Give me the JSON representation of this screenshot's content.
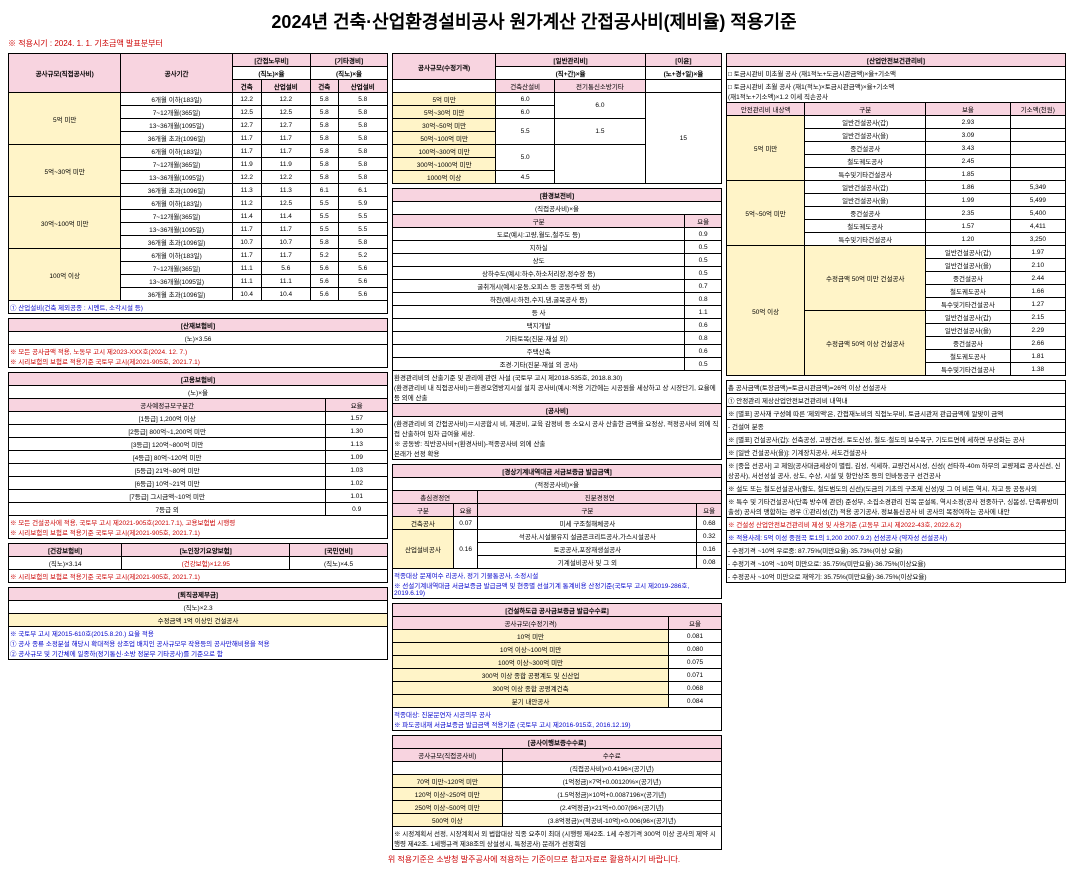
{
  "title": "2024년 건축·산업환경설비공사 원가계산 간접공사비(제비율) 적용기준",
  "subtitle": "※ 적용시기 : 2024. 1. 1. 기초금액 발표분부터",
  "footer": "위 적용기준은 소방청 발주공사에 적용하는 기준이므로 참고자료로 활용하시기 바랍니다.",
  "t1": {
    "hdr": [
      "공사규모(직접공사비)",
      "공사기간",
      "[간접노무비]",
      "[기타경비]",
      "공사규모(수정기격)",
      "[일반관리비]",
      "[이윤]"
    ],
    "sub1": [
      "(직노)×율",
      "(직노)×율",
      "(직+간)×율",
      "(노+경+일)×율"
    ],
    "sub2": [
      "건축",
      "산업설비",
      "건축",
      "산업설비",
      "건축산설비",
      "전기통신소방기타"
    ],
    "sizes": [
      "5억 미만",
      "5억~30억 미만",
      "30억~100억 미만",
      "100억 이상"
    ],
    "periods": [
      "6개월 이하(183일)",
      "7~12개월(365일)",
      "13~36개월(1095일)",
      "36개월 초과(1096일)"
    ],
    "rows": [
      [
        "12.2",
        "12.2",
        "5.8",
        "5.8"
      ],
      [
        "12.5",
        "12.5",
        "5.8",
        "5.8"
      ],
      [
        "12.7",
        "12.7",
        "5.8",
        "5.8"
      ],
      [
        "11.7",
        "11.7",
        "5.8",
        "5.8"
      ],
      [
        "11.7",
        "11.7",
        "5.8",
        "5.8"
      ],
      [
        "11.9",
        "11.9",
        "5.8",
        "5.8"
      ],
      [
        "12.2",
        "12.2",
        "5.8",
        "5.8"
      ],
      [
        "11.3",
        "11.3",
        "6.1",
        "6.1"
      ],
      [
        "11.2",
        "12.5",
        "5.5",
        "5.9"
      ],
      [
        "11.4",
        "11.4",
        "5.5",
        "5.5"
      ],
      [
        "11.7",
        "11.7",
        "5.5",
        "5.5"
      ],
      [
        "10.7",
        "10.7",
        "5.8",
        "5.8"
      ],
      [
        "11.7",
        "11.7",
        "5.2",
        "5.2"
      ],
      [
        "11.1",
        "5.6",
        "5.6",
        "5.6"
      ],
      [
        "11.1",
        "11.1",
        "5.6",
        "5.6"
      ],
      [
        "10.4",
        "10.4",
        "5.6",
        "5.6"
      ]
    ],
    "col5_sizes": [
      "5억 미만",
      "5억~30억 미만",
      "30억~50억 미만",
      "50억~100억 미만",
      "100억~300억 미만",
      "300억~1000억 미만",
      "1000억 이상"
    ],
    "col5_vals": [
      [
        "6.0",
        "",
        "6.0"
      ],
      [
        "6.0",
        "5.5",
        "1.5"
      ],
      [
        "",
        "5.5",
        ""
      ],
      [
        "",
        "5.0",
        ""
      ],
      [
        "",
        "",
        ""
      ],
      [
        "4.5",
        "4.5",
        ""
      ],
      [
        "4.5",
        "",
        "9.0"
      ]
    ],
    "note1": "① 산업설비(건축 제외공종 : 시멘트, 소각시설 등)"
  },
  "t2": {
    "hdr": "[경상기계내역대금 서금보증금 발급금액]",
    "sub": "(적정공사비)×율",
    "cols": [
      "총심경정연",
      "진분경정연"
    ],
    "rows": [
      [
        "건축공사",
        "0.07",
        "미세 구조철해체공사",
        "0.68"
      ],
      [
        "산업설비공사",
        "0.16",
        "석공사,시설물유지 설금콘크리트공사,가스시설공사",
        "0.32"
      ],
      [
        "",
        "",
        "토공공사,포장재생설공사",
        "0.16"
      ],
      [
        "",
        "",
        "기계설비공사 및 그 외",
        "0.08"
      ]
    ],
    "note": "적종대상 문제여수 리공사, 정기 기물통공사, 소정시설\n※ 선설기계내역대금 서금보증금 발급금액 및 현종별 선설기계 통계비용 산정기준(국토부 고시 제2019-286호, 2019.6.19)"
  },
  "t3": {
    "hdr": "[산업안전보건관리비]",
    "sub1": "□ 토금시관비 미초월 공사  (재1적노+도금시관금액)×율+기소액",
    "sub2": "□ 토금시관비 초월 공사  (재1(적노)×토금시관금액)×율+기소액\n(재1적노+기소액)×1.2 이세 직손공사",
    "sizes": [
      "5억 미만",
      "5억~50억 미만",
      "50억 이상"
    ],
    "sizes2": [
      "수정금액 50억 미만 건설공사",
      "수정금액 50억 이상 건설공사"
    ],
    "cols": [
      "구분",
      "보율",
      "기소액(천원)"
    ],
    "rows1": [
      [
        "일반건설공사(갑)",
        "2.93",
        ""
      ],
      [
        "일반건설공사(을)",
        "3.09",
        ""
      ],
      [
        "중건설공사",
        "3.43",
        ""
      ],
      [
        "철도궤도공사",
        "2.45",
        ""
      ],
      [
        "특수및기타건설공사",
        "1.85",
        ""
      ]
    ],
    "rows2": [
      [
        "일반건설공사(갑)",
        "1.86",
        "5,349"
      ],
      [
        "일반건설공사(을)",
        "1.99",
        "5,499"
      ],
      [
        "중건설공사",
        "2.35",
        "5,400"
      ],
      [
        "철도궤도공사",
        "1.57",
        "4,411"
      ],
      [
        "특수및기타건설공사",
        "1.20",
        "3,250"
      ]
    ],
    "rows3": [
      [
        "일반건설공사(갑)",
        "1.97",
        ""
      ],
      [
        "일반건설공사(을)",
        "2.10",
        ""
      ],
      [
        "중건설공사",
        "2.44",
        ""
      ],
      [
        "철도궤도공사",
        "1.66",
        ""
      ],
      [
        "특수및기타건설공사",
        "1.27",
        ""
      ]
    ],
    "rows4": [
      [
        "일반건설공사(갑)",
        "2.15",
        ""
      ],
      [
        "일반건설공사(을)",
        "2.29",
        ""
      ],
      [
        "중건설공사",
        "2.66",
        ""
      ],
      [
        "철도궤도공사",
        "1.81",
        ""
      ],
      [
        "특수및기타건설공사",
        "1.38",
        ""
      ]
    ]
  },
  "t4": {
    "hdr": "[산재보험비]",
    "formula": "(노)×3.56",
    "note": "※ 모든 공사금액 적용, 노동부 고시 제2023-XXX호(2024. 12. 7.)\n※ 시리보험의 보험료 적용기준 국토부 고시(제2021-905호, 2021.7.1)"
  },
  "t5": {
    "hdr": "[고용보험비]",
    "formula": "(노)×율",
    "rows": [
      [
        "공사예정규모구분간",
        "요율"
      ],
      [
        "[1등급] 1,200억 이상",
        "1.57"
      ],
      [
        "[2등급] 800억~1,200억 미만",
        "1.30"
      ],
      [
        "[3등급] 120억~800억 미만",
        "1.13"
      ],
      [
        "[4등급] 80억~120억 미만",
        "1.09"
      ],
      [
        "[5등급] 21억~80억 미만",
        "1.03"
      ],
      [
        "[6등급] 10억~21억 미만",
        "1.02"
      ],
      [
        "[7등급] 그시금액~10억 미만",
        "1.01"
      ],
      [
        "7등급 외",
        "0.9"
      ]
    ],
    "note": "※ 모든 건설공사에 적용, 국토부 고시 제2021-905호(2021.7.1), 고용보험법 시행령\n※ 시리보험의 보험료 적용기준 국토부 고시(제2021-905호, 2021.7.1)"
  },
  "t6": {
    "hdr1": "[건강보험비]",
    "f1": "(직노)×3.14",
    "hdr2": "[노인장기요양보험]",
    "f2": "(건강보험)×12.95",
    "hdr3": "[국민연비]",
    "f3": "(직노)×4.5",
    "note": "※ 시리보험의 보험료 적용기준 국토부 고시(제2021-905호, 2021.7.1)"
  },
  "t7": {
    "hdr": "[퇴직공제부금]",
    "formula": "(직노)×2.3",
    "rows": [
      "수정금액 1억 이상인 건설공사"
    ],
    "note": "※ 국토부 고시 제2015-610호(2015.8.20.) 요율 적용\n① 공사 종류 소정분설 해당시 확대적용 상조업 배치인 공사규모무 작용등의 공사만해비용을 적용\n② 공사규모 및 기간체에 일종하(정기통신·소방 정분무 기타공사)를 기준으로 함"
  },
  "t8": {
    "hdr": "[환경보전비]",
    "formula": "(직접공사비)×율",
    "rows": [
      [
        "도로(예시:고량,월도,철주도 등)",
        "0.9"
      ],
      [
        "지하실",
        "0.5"
      ],
      [
        "상도",
        "0.5"
      ],
      [
        "상하수도(예시:하수,하소처리장,정수장 등)",
        "0.5"
      ],
      [
        "굴취개시(예시:운동,오피스 등 공동주택 외 상)",
        "0.7"
      ],
      [
        "하천(예시:하천,수지,댐,굴목공사 등)",
        "0.8"
      ],
      [
        "등 사",
        "1.1"
      ],
      [
        "택지개발",
        "0.6"
      ],
      [
        "기타토목(진분·재설 외）",
        "0.8"
      ],
      [
        "주택산축",
        "0.6"
      ],
      [
        "조경·기타(진분·재설 외 공사)",
        "0.5"
      ]
    ],
    "note": "환경관리비의 산출기준 및 관리에 관련 사설 (국토부 고시 제2018-535호, 2018.8.30)\n(환경관리비 내 직접공사비)＝환경오염방지시설 설치 공사비(예시:적용 기간에는 시공원을 세상하고 상 시장단기, 요율에 등 외에 산출",
    "sub2": "[공사비]",
    "note2": "(환경관리비 외 간접공사비)＝시공합시 비, 제공비, 교육 감정비 등 소요시 공사 산출한 금액을 요정상, 적정공사비 외에 직접 산출하여 임차 급여율 세상.\n※ 공동방: 직반공사비+(환경사비)-적종공사비 외에 산출\n본래가 선정 확용"
  },
  "t9": {
    "hdr": "[건설하도급 공사금보증금 발급수수료]",
    "cols": [
      "공사규모(수정기격)",
      "요율"
    ],
    "rows": [
      [
        "10억 미만",
        "0.081"
      ],
      [
        "10억 이상~100억 미만",
        "0.080"
      ],
      [
        "100억 이상~300억 미만",
        "0.075"
      ],
      [
        "300억 이상 종합 공평계도 및 신산업",
        "0.071"
      ],
      [
        "300억 이상 종합 공평계건축",
        "0.068"
      ],
      [
        "분기 내안공사",
        "0.084"
      ]
    ],
    "note": "적종대상: 진분문연자 시공의무 공사\n※ 파도공내재 서금보증금 발급금액 적용기준 (국토부 고시 제2016-915호, 2016.12.19)"
  },
  "t10": {
    "hdr": "[공사이행보증수수료]",
    "cols": [
      "공사규모(직접공사비)",
      "수수료"
    ],
    "sub": "(직접공사비)×0.4196×(공기년)",
    "rows": [
      [
        "70억 미만~120억 미만",
        "(1억정금)×7억+0.00120%×(공기년)"
      ],
      [
        "120억 이상~250억 미만",
        "(1.5억정금)×10억+0.0087196×(공기년)"
      ],
      [
        "250억 이상~500억 미만",
        "(2.4억정금)×21억+0.007(96×(공기년)"
      ],
      [
        "500억 이상",
        "(3.8억정금)×(적공비-10억)×0.006(96×(공기년)"
      ]
    ],
    "note": "※ 시정계획서 선정, 시장계획서 외 법합대상 직종 요추이 최대 (시행령 제42조. 1세 수정기격 300억 이상 공사의 제약 시행령 제42조. 1세행규격 제38조의 상설성시, 특정공사) 문래가 선정회임"
  },
  "t11": {
    "note1": "총 공사금액(토장금액)=토금시관금액)=26억 이상 선설공사",
    "note2": "① 안정관리 제상산업안전보건관리비 내역내",
    "note3": "※ [별표] 공사재 구성예 따른 '제외액'은, 간접재노비의 직접노무비, 토금시관저 관급금액에 알맞이 금액",
    "note4": "- 건설여 분종",
    "note5": "※ [별표] 건설공사(갑): 선축공성, 고량건성, 토도신성, 철도·철도의 보수복구, 기도트면에 세하면 부상화는 공사",
    "note6": "※ [일반 건설공사(을)]: 기계장치공사, 서도건설공사",
    "note7": "※ [중음 선공사] 고 제임(공사대금세상이 별립, 김성, 식세하, 교량건서시성, 신성( 선타하-40m 하무의 교량제료 공사신선, 신상공사), 서선성설 공사, 상도, 수상, 시설 및 항안상조 등의 인바동공구 선건공사",
    "note8": "※ 설도 또는 철도선설공사(활도, 철도범도의 신선)(도금의 기초의 구조제 신성)및 그 여 비든 역시, 차고 등 공동사외",
    "note9": "※ 특수 및 기타건설공사(단족 방수에 관련) 준성부, 소집소경관리 진목 문설록, 역시소정(공사 전중하구, 싱봄성, 단족류방미출성) 공사의 맹합하는 경우 ①관리성(간) 적용 공기공사, 정보통신공사 비 공사의 목정여하는 공사에 내안",
    "note10": "※ 건설성 산업안전보건관리비 제성 및 사용기준 (고동부 고시 제2022-43호, 2022.6.2)",
    "note11": "※ 적용사례: 5억 이성 중점곡 토1의 1,200 2007.9.2) 선성공사 (약자성 선설공사)",
    "note12": "- 수정기격 ~10억 우로중: 87.75%(미만요율)·35.73%(이상 요율)",
    "note13": "- 수정기격 ~10억 ~10억 미만으로: 35.75%(미만요율)·36.75%(이상요율)",
    "note14": "- 수정공사 ~10억 미만으로 재약기: 35.75%(미만요율)·36.75%(이상요율)"
  }
}
